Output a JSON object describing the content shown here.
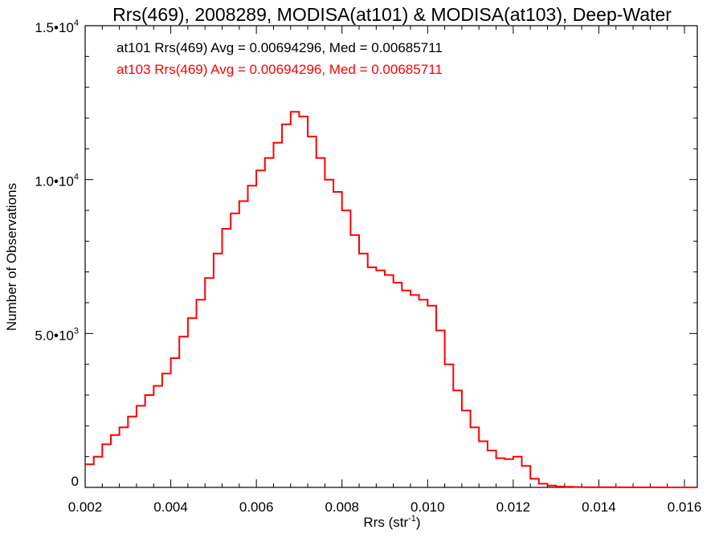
{
  "chart_data": {
    "type": "line",
    "title": "Rrs(469), 2008289, MODISA(at101) & MODISA(at103), Deep-Water",
    "xlabel": {
      "main": "Rrs (str",
      "sup": "-1",
      "end": ")"
    },
    "ylabel": "Number of Observations",
    "xlim": [
      0.002,
      0.0163
    ],
    "ylim": [
      0,
      15000
    ],
    "x_ticks": [
      {
        "value": 0.002,
        "label": "0.002"
      },
      {
        "value": 0.004,
        "label": "0.004"
      },
      {
        "value": 0.006,
        "label": "0.006"
      },
      {
        "value": 0.008,
        "label": "0.008"
      },
      {
        "value": 0.01,
        "label": "0.010"
      },
      {
        "value": 0.012,
        "label": "0.012"
      },
      {
        "value": 0.014,
        "label": "0.014"
      },
      {
        "value": 0.016,
        "label": "0.016"
      }
    ],
    "y_ticks": [
      {
        "value": 0,
        "label": "0",
        "sup": ""
      },
      {
        "value": 5000,
        "label": "5.0•10",
        "sup": "3"
      },
      {
        "value": 10000,
        "label": "1.0•10",
        "sup": "4"
      },
      {
        "value": 15000,
        "label": "1.5•10",
        "sup": "4"
      }
    ],
    "annotations": [
      {
        "text": "at101 Rrs(469) Avg = 0.00694296, Med = 0.00685711",
        "color": "#000000"
      },
      {
        "text": "at103 Rrs(469) Avg = 0.00694296, Med = 0.00685711",
        "color": "#ff0000"
      }
    ],
    "series": [
      {
        "line_color": "#ff0000",
        "step": true,
        "x": [
          0.002,
          0.0022,
          0.0024,
          0.0026,
          0.0028,
          0.003,
          0.0032,
          0.0034,
          0.0036,
          0.0038,
          0.004,
          0.0042,
          0.0044,
          0.0046,
          0.0048,
          0.005,
          0.0052,
          0.0054,
          0.0056,
          0.0058,
          0.006,
          0.0062,
          0.0064,
          0.0066,
          0.0068,
          0.007,
          0.0072,
          0.0074,
          0.0076,
          0.0078,
          0.008,
          0.0082,
          0.0084,
          0.0086,
          0.0088,
          0.009,
          0.0092,
          0.0094,
          0.0096,
          0.0098,
          0.01,
          0.0102,
          0.0104,
          0.0106,
          0.0108,
          0.011,
          0.0112,
          0.0114,
          0.0116,
          0.0118,
          0.012,
          0.0122,
          0.0124,
          0.0126,
          0.0128,
          0.013,
          0.0132,
          0.0134,
          0.0136,
          0.0138,
          0.014,
          0.0145,
          0.015,
          0.0155,
          0.016,
          0.0163
        ],
        "values": [
          750,
          1000,
          1400,
          1700,
          1950,
          2300,
          2650,
          3000,
          3300,
          3700,
          4200,
          4900,
          5500,
          6100,
          6800,
          7600,
          8400,
          8900,
          9300,
          9800,
          10300,
          10700,
          11200,
          11800,
          12200,
          12050,
          11400,
          10700,
          10000,
          9600,
          9000,
          8200,
          7600,
          7150,
          7050,
          6900,
          6650,
          6400,
          6250,
          6100,
          5900,
          5100,
          4000,
          3150,
          2500,
          1950,
          1500,
          1200,
          950,
          920,
          1000,
          700,
          280,
          120,
          60,
          30,
          20,
          12,
          8,
          5,
          4,
          3,
          2,
          1,
          1,
          1
        ]
      }
    ]
  }
}
